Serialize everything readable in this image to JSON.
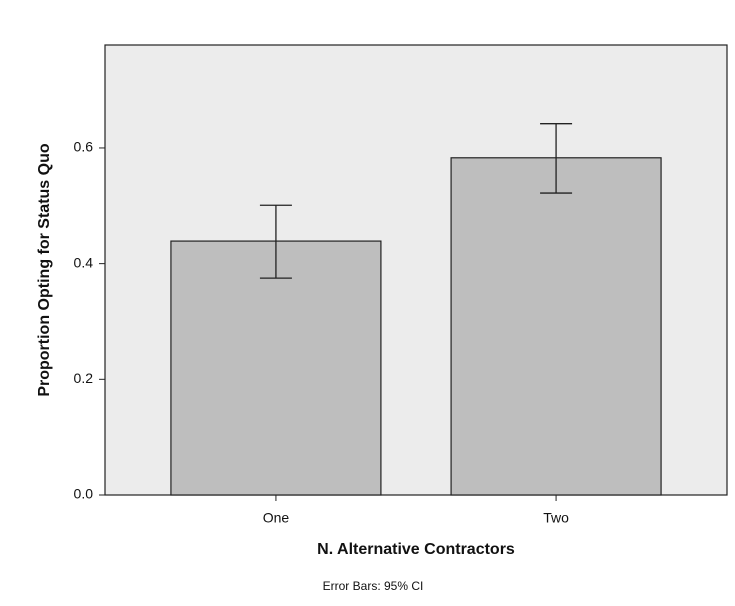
{
  "chart_data": {
    "type": "bar",
    "x_label": "N. Alternative Contractors",
    "y_label": "Proportion Opting for Status Quo",
    "annotation": "Error Bars: 95% CI",
    "categories": [
      "One",
      "Two"
    ],
    "values": [
      0.439,
      0.583
    ],
    "ci_lower": [
      0.375,
      0.522
    ],
    "ci_upper": [
      0.501,
      0.642
    ],
    "color": "#bebebe",
    "ylim": [
      0,
      0.778
    ],
    "yticks": [
      {
        "value": 0,
        "label": "0.0"
      },
      0.2,
      0.4,
      0.6
    ]
  }
}
